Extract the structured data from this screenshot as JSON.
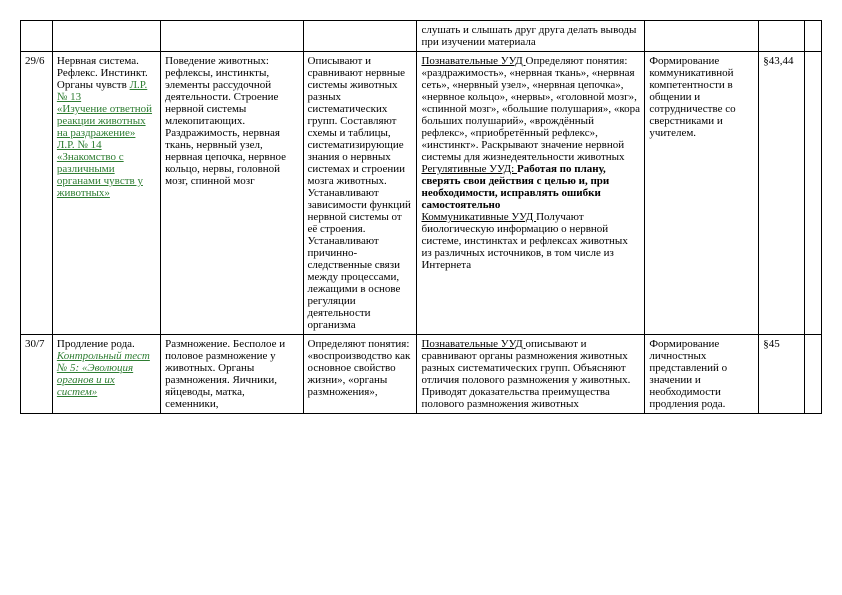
{
  "row0": {
    "uud": "слушать и слышать друг друга делать выводы при изучении материала"
  },
  "row1": {
    "num": "29/6",
    "topic_plain": "Нервная система. Рефлекс. Инстинкт. Органы чувств ",
    "topic_link1": "Л.Р. № 13",
    "topic_link2": "«Изучение ответной реакции животных на раздражение»",
    "topic_link3": "Л.Р. № 14",
    "topic_link4": "«Знакомство с различными органами чувств у животных»",
    "content": "Поведение животных: рефлексы, инстинкты, элементы рассудочной деятельности. Строение нервной системы млекопитающих. Раздражимость, нервная ткань, нервный узел, нервная цепочка, нервное кольцо, нервы, головной мозг, спинной мозг",
    "activity": "Описывают и сравнивают нервные системы животных разных систематических групп. Составляют схемы и таблицы, систематизирующие знания о нервных системах и строении мозга животных. Устанавливают зависимости функций нервной системы от её строения. Устанавливают причинно-следственные связи между процессами, лежащими в основе регуляции деятельности организма",
    "uud_p_label": "Познавательные УУД ",
    "uud_p": "Определяют понятия: «раздражимость», «нервная ткань», «нервная сеть», «нервный узел», «нервная цепочка», «нервное кольцо», «нервы», «головной мозг», «спинной мозг», «большие полушария», «кора больших полушарий», «врождённый рефлекс», «приобретённый рефлекс», «инстинкт». Раскрывают значение нервной системы для жизнедеятельности животных",
    "uud_r_label": "Регулятивные УУД: ",
    "uud_r": "Работая по плану, сверять свои действия с целью и, при необходимости, исправлять ошибки самостоятельно",
    "uud_k_label": "Коммуникативные УУД ",
    "uud_k": "Получают биологическую информацию о нервной системе, инстинктах и рефлексах животных из различных источников, в том числе из Интернета",
    "personal": "Формирование коммуникативной компетентности в общении и сотрудничестве со сверстниками и учителем.",
    "para": "§43,44"
  },
  "row2": {
    "num": "30/7",
    "topic_plain": "Продление рода. ",
    "topic_link1": "Контрольный тест № 5: «Эволюция органов и их систем»",
    "content": "Размножение. Бесполое и половое размножение у животных. Органы размножения. Яичники, яйцеводы, матка, семенники,",
    "activity": "Определяют понятия: «воспроизводство как основное свойство жизни», «органы размножения»,",
    "uud_p_label": "Познавательные УУД ",
    "uud_p": "описывают и сравнивают органы размножения животных разных систематических групп. Объясняют отличия полового размножения у животных. Приводят доказательства преимущества полового размножения животных",
    "personal": "Формирование личностных представлений о значении и необходимости продления рода.",
    "para": "§45"
  }
}
